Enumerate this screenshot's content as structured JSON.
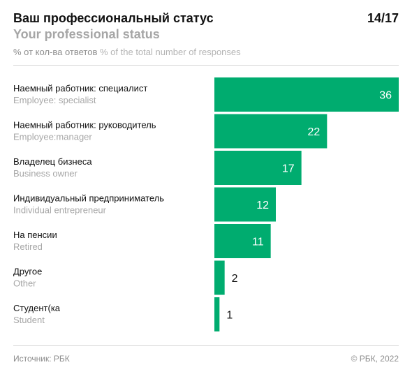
{
  "header": {
    "title_ru": "Ваш профессиональный статус",
    "title_en": "Your professional status",
    "page": "14/17",
    "subtitle_ru": "% от кол-ва ответов",
    "subtitle_en": "% of the total number of responses"
  },
  "colors": {
    "bar": "#00ac6f",
    "label_en": "#a6a6a6"
  },
  "chart_data": {
    "type": "bar",
    "orientation": "horizontal",
    "categories": [
      "Наемный работник: специалист",
      "Наемный работник: руководитель",
      "Владелец бизнеса",
      "Индивидуальный предприниматель",
      "На пенсии",
      "Другое",
      "Студент(ка"
    ],
    "categories_en": [
      "Employee: specialist",
      "Employee:manager",
      "Business owner",
      "Individual entrepreneur",
      "Retired",
      "Other",
      "Student"
    ],
    "values": [
      36,
      22,
      17,
      12,
      11,
      2,
      1
    ],
    "xlim": [
      0,
      36
    ],
    "grid": false
  },
  "footer": {
    "source": "Источник: РБК",
    "copyright": "© РБК, 2022"
  }
}
